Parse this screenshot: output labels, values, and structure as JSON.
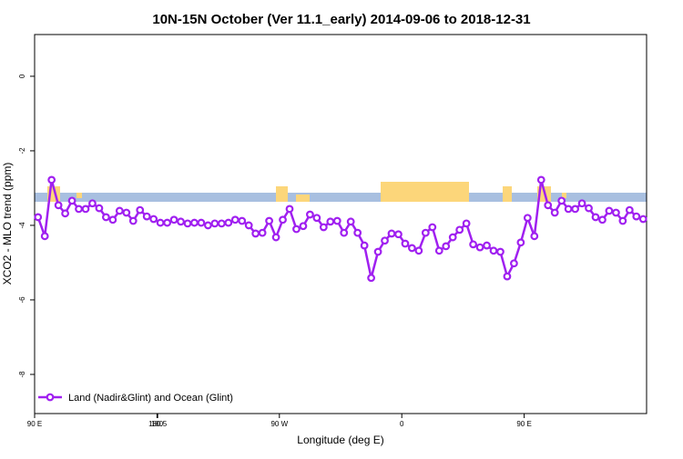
{
  "chart_data": {
    "type": "line",
    "title": "10N-15N October (Ver 11.1_early)   2014-09-06 to 2018-12-31",
    "x_label": "Longitude (deg E)",
    "y_label": "XCO2 - MLO trend (ppm)",
    "x": [
      92.5,
      97.5,
      102.5,
      107.5,
      112.5,
      117.5,
      122.5,
      127.5,
      132.5,
      137.5,
      142.5,
      147.5,
      152.5,
      157.5,
      162.5,
      167.5,
      172.5,
      177.5,
      182.5,
      187.5,
      192.5,
      197.5,
      202.5,
      207.5,
      212.5,
      217.5,
      222.5,
      227.5,
      232.5,
      237.5,
      242.5,
      247.5,
      252.5,
      257.5,
      262.5,
      267.5,
      272.5,
      277.5,
      282.5,
      287.5,
      292.5,
      297.5,
      302.5,
      307.5,
      312.5,
      317.5,
      322.5,
      327.5,
      332.5,
      337.5,
      342.5,
      347.5,
      352.5,
      357.5,
      362.5,
      367.5,
      372.5,
      377.5,
      382.5,
      387.5,
      392.5,
      397.5,
      402.5,
      407.5,
      412.5,
      417.5,
      422.5,
      427.5,
      432.5,
      437.5,
      442.5,
      447.5,
      452.5,
      457.5,
      462.5,
      467.5,
      472.5,
      477.5,
      482.5,
      487.5,
      492.5,
      497.5,
      502.5,
      507.5,
      512.5,
      517.5,
      522.5,
      527.5,
      532.5,
      537.5
    ],
    "series": [
      {
        "name": "Land (Nadir&Glint) and Ocean (Glint)",
        "color": "#a020f0",
        "values": [
          -3.78,
          -4.29,
          -2.78,
          -3.46,
          -3.68,
          -3.34,
          -3.56,
          -3.56,
          -3.41,
          -3.54,
          -3.78,
          -3.85,
          -3.61,
          -3.66,
          -3.88,
          -3.59,
          -3.76,
          -3.83,
          -3.93,
          -3.93,
          -3.85,
          -3.9,
          -3.95,
          -3.93,
          -3.93,
          -4.0,
          -3.95,
          -3.95,
          -3.93,
          -3.85,
          -3.88,
          -4.0,
          -4.22,
          -4.2,
          -3.88,
          -4.32,
          -3.85,
          -3.56,
          -4.1,
          -4.02,
          -3.71,
          -3.8,
          -4.05,
          -3.9,
          -3.88,
          -4.2,
          -3.9,
          -4.2,
          -4.54,
          -5.41,
          -4.71,
          -4.41,
          -4.22,
          -4.24,
          -4.49,
          -4.61,
          -4.68,
          -4.2,
          -4.05,
          -4.68,
          -4.56,
          -4.32,
          -4.12,
          -3.95,
          -4.51,
          -4.59,
          -4.54,
          -4.68,
          -4.71,
          -5.37,
          -5.02,
          -4.46,
          -3.8,
          -4.29,
          -2.78,
          -3.46,
          -3.66,
          -3.34,
          -3.56,
          -3.56,
          -3.41,
          -3.54,
          -3.78,
          -3.85,
          -3.61,
          -3.66,
          -3.88,
          -3.59,
          -3.76,
          -3.83
        ]
      }
    ],
    "xlim": [
      90,
      540
    ],
    "xticks": [
      {
        "value": 90,
        "label": "90 E"
      },
      180,
      {
        "value": 270,
        "label": "90 W"
      },
      {
        "value": 360,
        "label": "0"
      },
      {
        "value": 450,
        "label": "90 E"
      },
      180.5
    ],
    "ylim": [
      -9.05,
      1.12
    ],
    "yticks": [
      -8,
      -6,
      -4,
      -2,
      0
    ],
    "legend": "bottom-left"
  }
}
